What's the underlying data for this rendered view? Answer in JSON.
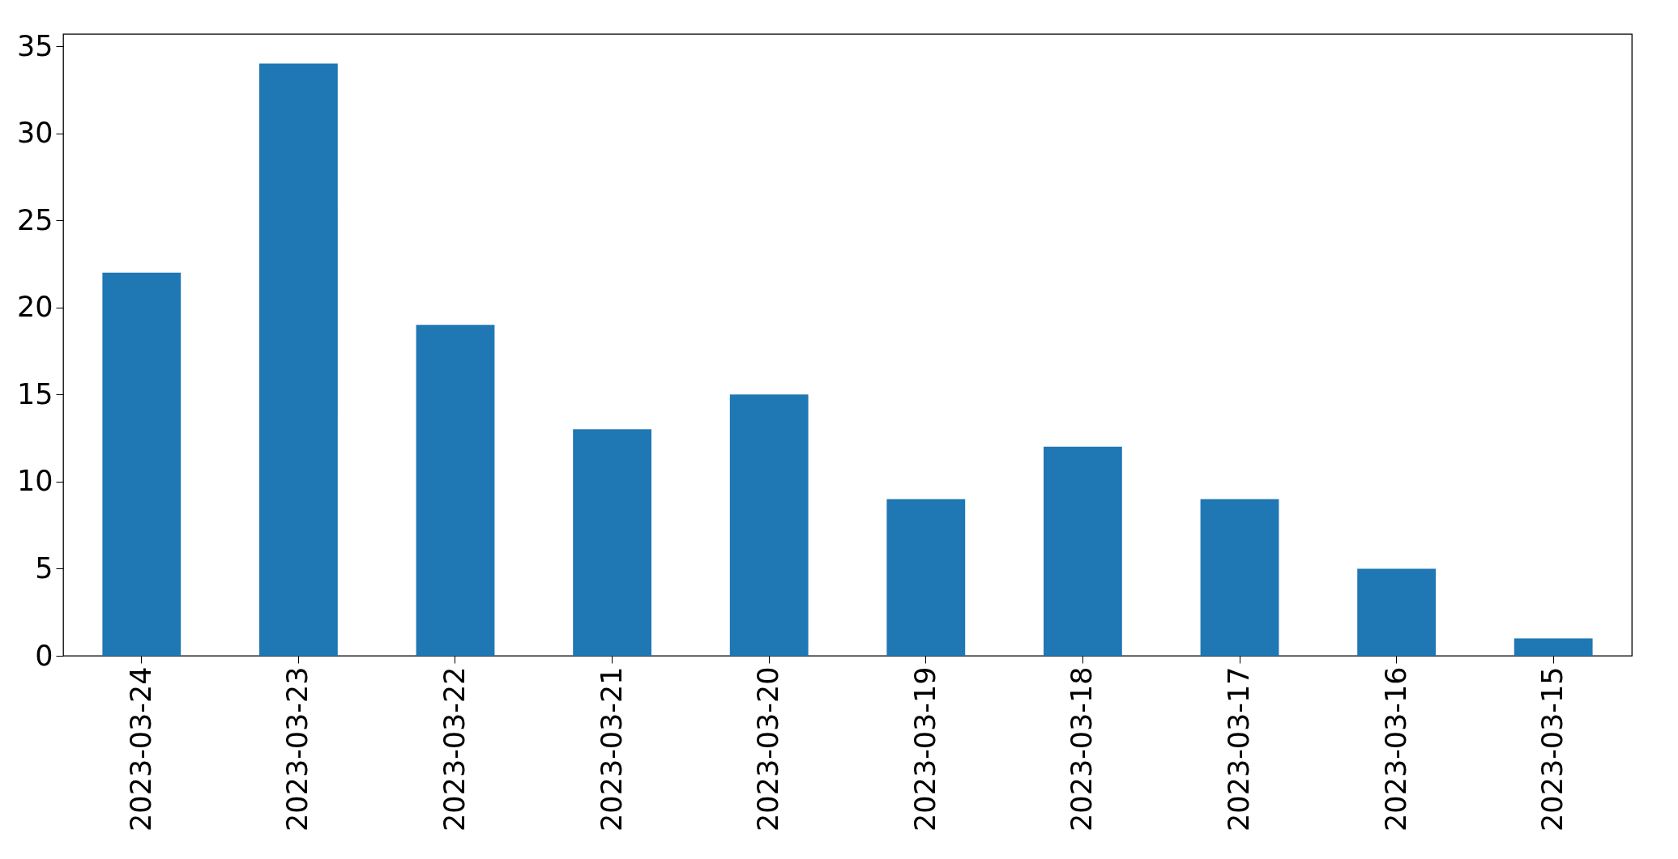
{
  "chart_data": {
    "type": "bar",
    "categories": [
      "2023-03-24",
      "2023-03-23",
      "2023-03-22",
      "2023-03-21",
      "2023-03-20",
      "2023-03-19",
      "2023-03-18",
      "2023-03-17",
      "2023-03-16",
      "2023-03-15"
    ],
    "values": [
      22,
      34,
      19,
      13,
      15,
      9,
      12,
      9,
      5,
      1
    ],
    "color": "#1f77b4",
    "ylim": [
      0,
      35.7
    ],
    "yticks": [
      0,
      5,
      10,
      15,
      20,
      25,
      30,
      35
    ],
    "grid": false
  }
}
